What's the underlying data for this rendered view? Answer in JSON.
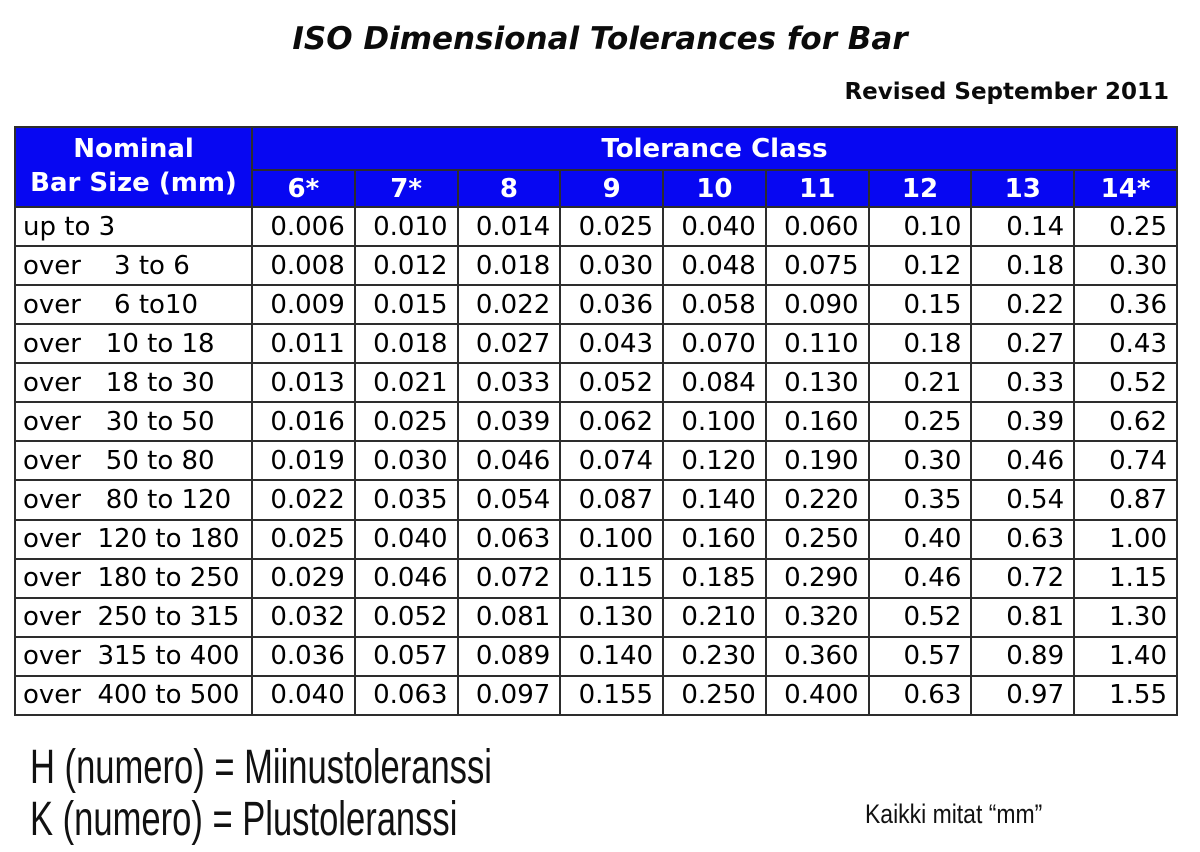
{
  "page": {
    "title": "ISO Dimensional Tolerances for Bar",
    "revised": "Revised September 2011"
  },
  "colors": {
    "header_blue": "#0707f2",
    "border": "#2d2d2d",
    "header_text": "#ffffff",
    "body_text": "#000000"
  },
  "table": {
    "nominal_header_line1": "Nominal",
    "nominal_header_line2": "Bar Size (mm)",
    "tolerance_class_label": "Tolerance Class",
    "class_headers": [
      "6*",
      "7*",
      "8",
      "9",
      "10",
      "11",
      "12",
      "13",
      "14*"
    ],
    "rows": [
      {
        "size": "up to 3",
        "values": [
          "0.006",
          "0.010",
          "0.014",
          "0.025",
          "0.040",
          "0.060",
          "0.10",
          "0.14",
          "0.25"
        ]
      },
      {
        "size": "over    3 to 6",
        "values": [
          "0.008",
          "0.012",
          "0.018",
          "0.030",
          "0.048",
          "0.075",
          "0.12",
          "0.18",
          "0.30"
        ]
      },
      {
        "size": "over    6 to10",
        "values": [
          "0.009",
          "0.015",
          "0.022",
          "0.036",
          "0.058",
          "0.090",
          "0.15",
          "0.22",
          "0.36"
        ]
      },
      {
        "size": "over   10 to 18",
        "values": [
          "0.011",
          "0.018",
          "0.027",
          "0.043",
          "0.070",
          "0.110",
          "0.18",
          "0.27",
          "0.43"
        ]
      },
      {
        "size": "over   18 to 30",
        "values": [
          "0.013",
          "0.021",
          "0.033",
          "0.052",
          "0.084",
          "0.130",
          "0.21",
          "0.33",
          "0.52"
        ]
      },
      {
        "size": "over   30 to 50",
        "values": [
          "0.016",
          "0.025",
          "0.039",
          "0.062",
          "0.100",
          "0.160",
          "0.25",
          "0.39",
          "0.62"
        ]
      },
      {
        "size": "over   50 to 80",
        "values": [
          "0.019",
          "0.030",
          "0.046",
          "0.074",
          "0.120",
          "0.190",
          "0.30",
          "0.46",
          "0.74"
        ]
      },
      {
        "size": "over   80 to 120",
        "values": [
          "0.022",
          "0.035",
          "0.054",
          "0.087",
          "0.140",
          "0.220",
          "0.35",
          "0.54",
          "0.87"
        ]
      },
      {
        "size": "over  120 to 180",
        "values": [
          "0.025",
          "0.040",
          "0.063",
          "0.100",
          "0.160",
          "0.250",
          "0.40",
          "0.63",
          "1.00"
        ]
      },
      {
        "size": "over  180 to 250",
        "values": [
          "0.029",
          "0.046",
          "0.072",
          "0.115",
          "0.185",
          "0.290",
          "0.46",
          "0.72",
          "1.15"
        ]
      },
      {
        "size": "over  250 to 315",
        "values": [
          "0.032",
          "0.052",
          "0.081",
          "0.130",
          "0.210",
          "0.320",
          "0.52",
          "0.81",
          "1.30"
        ]
      },
      {
        "size": "over  315 to 400",
        "values": [
          "0.036",
          "0.057",
          "0.089",
          "0.140",
          "0.230",
          "0.360",
          "0.57",
          "0.89",
          "1.40"
        ]
      },
      {
        "size": "over  400 to 500",
        "values": [
          "0.040",
          "0.063",
          "0.097",
          "0.155",
          "0.250",
          "0.400",
          "0.63",
          "0.97",
          "1.55"
        ]
      }
    ]
  },
  "footer": {
    "line1": "H (numero) = Miinustoleranssi",
    "line2": "K (numero) = Plustoleranssi",
    "note": "Kaikki mitat “mm”"
  }
}
